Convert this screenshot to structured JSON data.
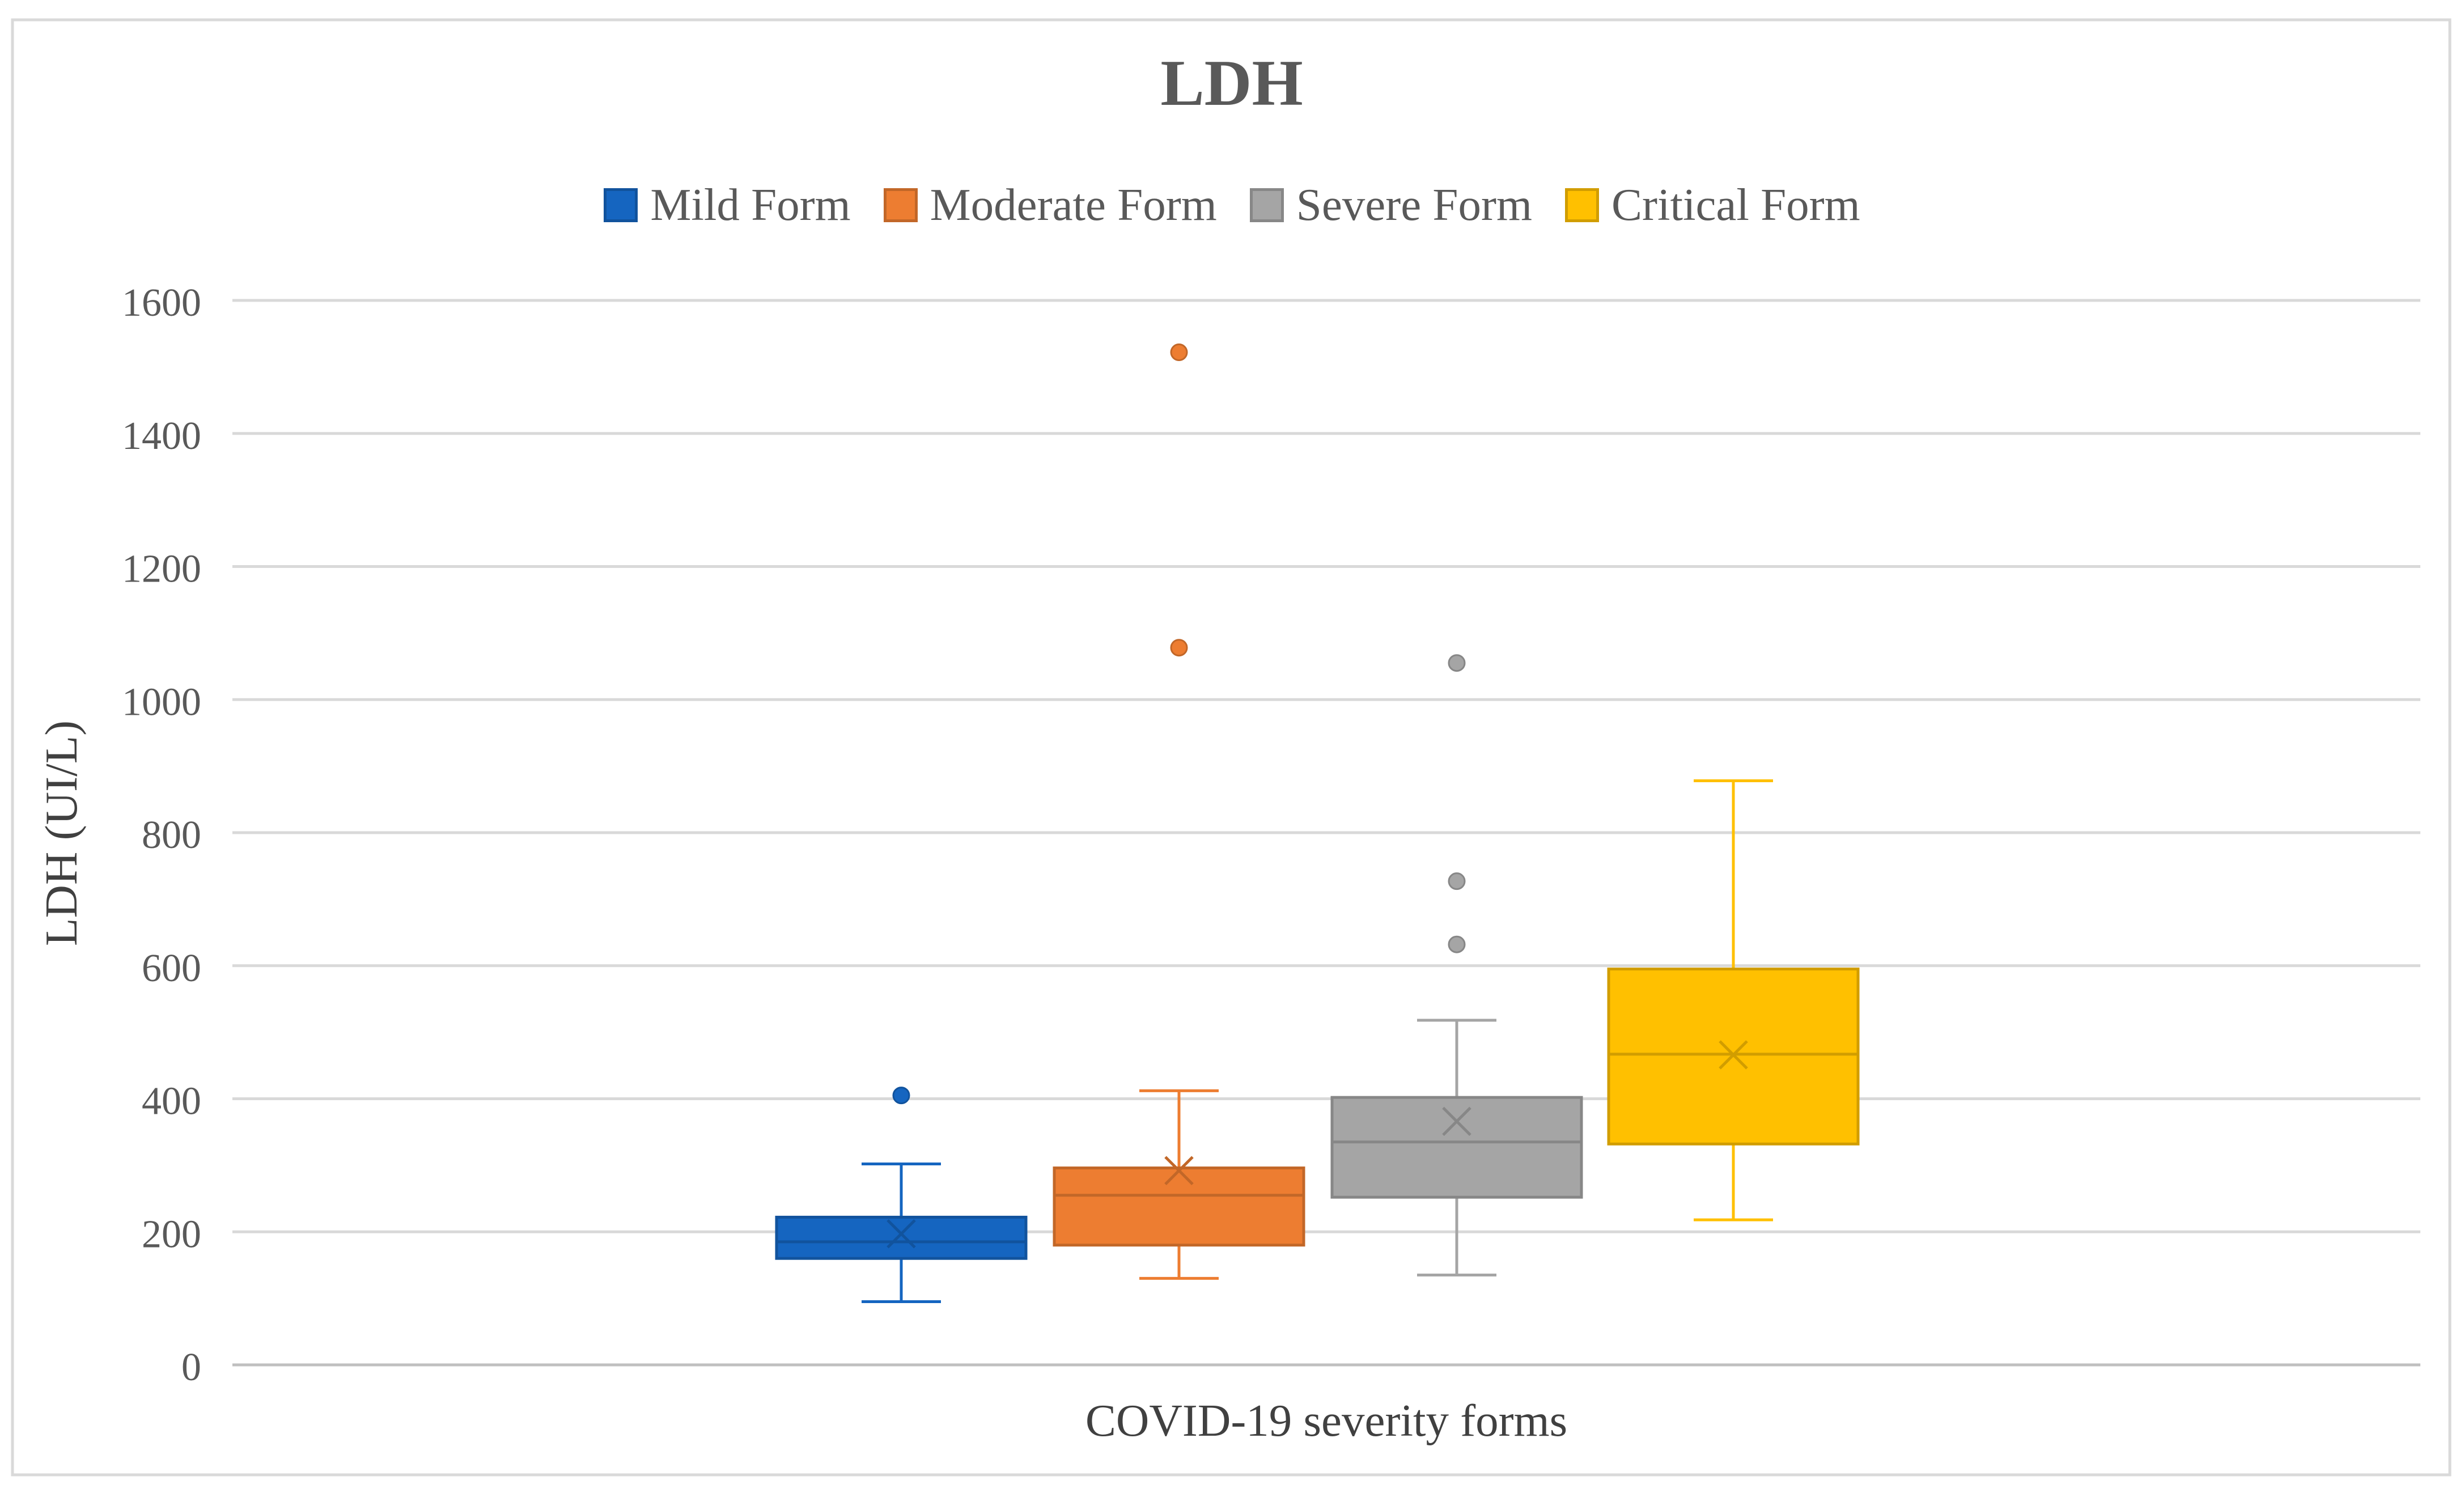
{
  "chart_data": {
    "type": "box",
    "title": "LDH",
    "xlabel": "COVID-19 severity forms",
    "ylabel": "LDH (UI/L)",
    "ylim": [
      0,
      1600
    ],
    "yticks": [
      0,
      200,
      400,
      600,
      800,
      1000,
      1200,
      1400,
      1600
    ],
    "grid": true,
    "legend_position": "top-center",
    "series": [
      {
        "name": "Mild Form",
        "color": "#1565C0",
        "whisker_low": 95,
        "q1": 160,
        "median": 185,
        "q3": 222,
        "whisker_high": 302,
        "mean": 197,
        "outliers": [
          405
        ]
      },
      {
        "name": "Moderate Form",
        "color": "#ED7D31",
        "whisker_low": 130,
        "q1": 180,
        "median": 255,
        "q3": 296,
        "whisker_high": 412,
        "mean": 292,
        "outliers": [
          1078,
          1522
        ]
      },
      {
        "name": "Severe Form",
        "color": "#A5A5A5",
        "whisker_low": 135,
        "q1": 252,
        "median": 335,
        "q3": 402,
        "whisker_high": 518,
        "mean": 366,
        "outliers": [
          632,
          727,
          1055
        ]
      },
      {
        "name": "Critical Form",
        "color": "#FFC000",
        "whisker_low": 218,
        "q1": 332,
        "median": 467,
        "q3": 595,
        "whisker_high": 878,
        "mean": 466,
        "outliers": []
      }
    ]
  }
}
